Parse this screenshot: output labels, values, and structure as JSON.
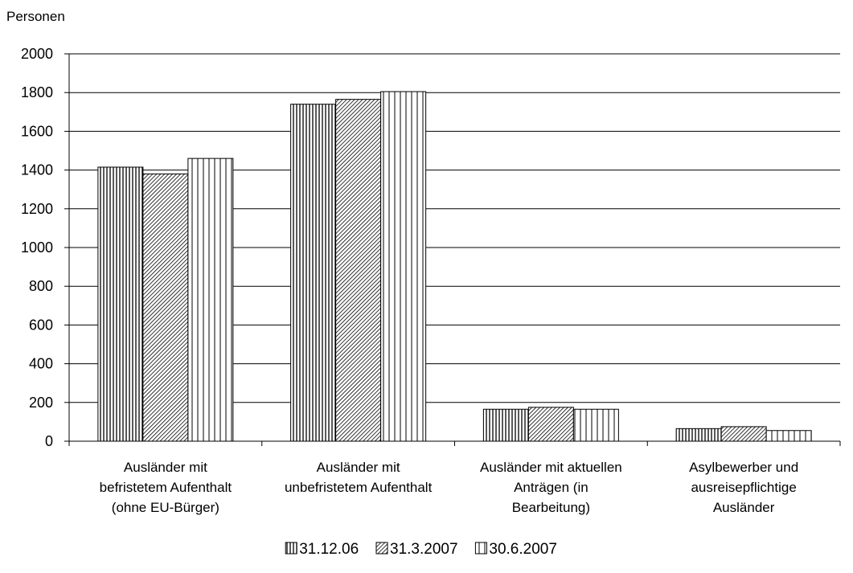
{
  "chart_data": {
    "type": "bar",
    "ylabel": "Personen",
    "ylim": [
      0,
      2000
    ],
    "yticks": [
      0,
      200,
      400,
      600,
      800,
      1000,
      1200,
      1400,
      1600,
      1800,
      2000
    ],
    "categories": [
      [
        "Ausländer mit",
        "befristetem Aufenthalt",
        "(ohne EU-Bürger)"
      ],
      [
        "Ausländer mit",
        "unbefristetem Aufenthalt"
      ],
      [
        "Ausländer mit aktuellen",
        "Anträgen (in",
        "Bearbeitung)"
      ],
      [
        "Asylbewerber und",
        "ausreisepflichtige",
        "Ausländer"
      ]
    ],
    "series": [
      {
        "name": "31.12.06",
        "pattern": "vertical-dense",
        "values": [
          1415,
          1740,
          165,
          65
        ]
      },
      {
        "name": "31.3.2007",
        "pattern": "diagonal-dense",
        "values": [
          1380,
          1765,
          175,
          75
        ]
      },
      {
        "name": "30.6.2007",
        "pattern": "vertical-sparse",
        "values": [
          1460,
          1805,
          165,
          55
        ]
      }
    ],
    "grid": true,
    "legend_position": "bottom"
  }
}
